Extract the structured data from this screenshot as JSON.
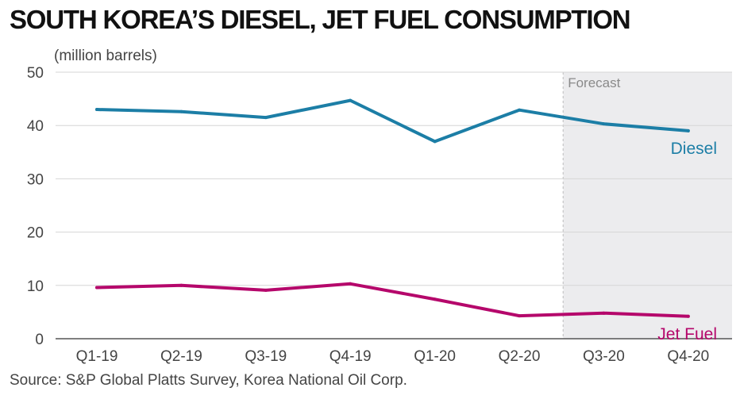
{
  "chart_data": {
    "type": "line",
    "title": "SOUTH KOREA’S DIESEL, JET FUEL CONSUMPTION",
    "ylabel": "(million barrels)",
    "source": "Source: S&P Global Platts Survey, Korea National Oil Corp.",
    "categories": [
      "Q1-19",
      "Q2-19",
      "Q3-19",
      "Q4-19",
      "Q1-20",
      "Q2-20",
      "Q3-20",
      "Q4-20"
    ],
    "y_ticks": [
      "0",
      "10",
      "20",
      "30",
      "40",
      "50"
    ],
    "ylim": [
      0,
      50
    ],
    "grid": true,
    "forecast": {
      "label": "Forecast",
      "from": "Q3-20",
      "to": "Q4-20"
    },
    "series": [
      {
        "name": "Diesel",
        "color": "#1c7ea6",
        "values": [
          43.0,
          42.6,
          41.5,
          44.7,
          37.0,
          42.9,
          40.3,
          39.0
        ]
      },
      {
        "name": "Jet Fuel",
        "color": "#b5076b",
        "values": [
          9.6,
          10.0,
          9.1,
          10.3,
          7.4,
          4.3,
          4.8,
          4.2
        ]
      }
    ]
  }
}
